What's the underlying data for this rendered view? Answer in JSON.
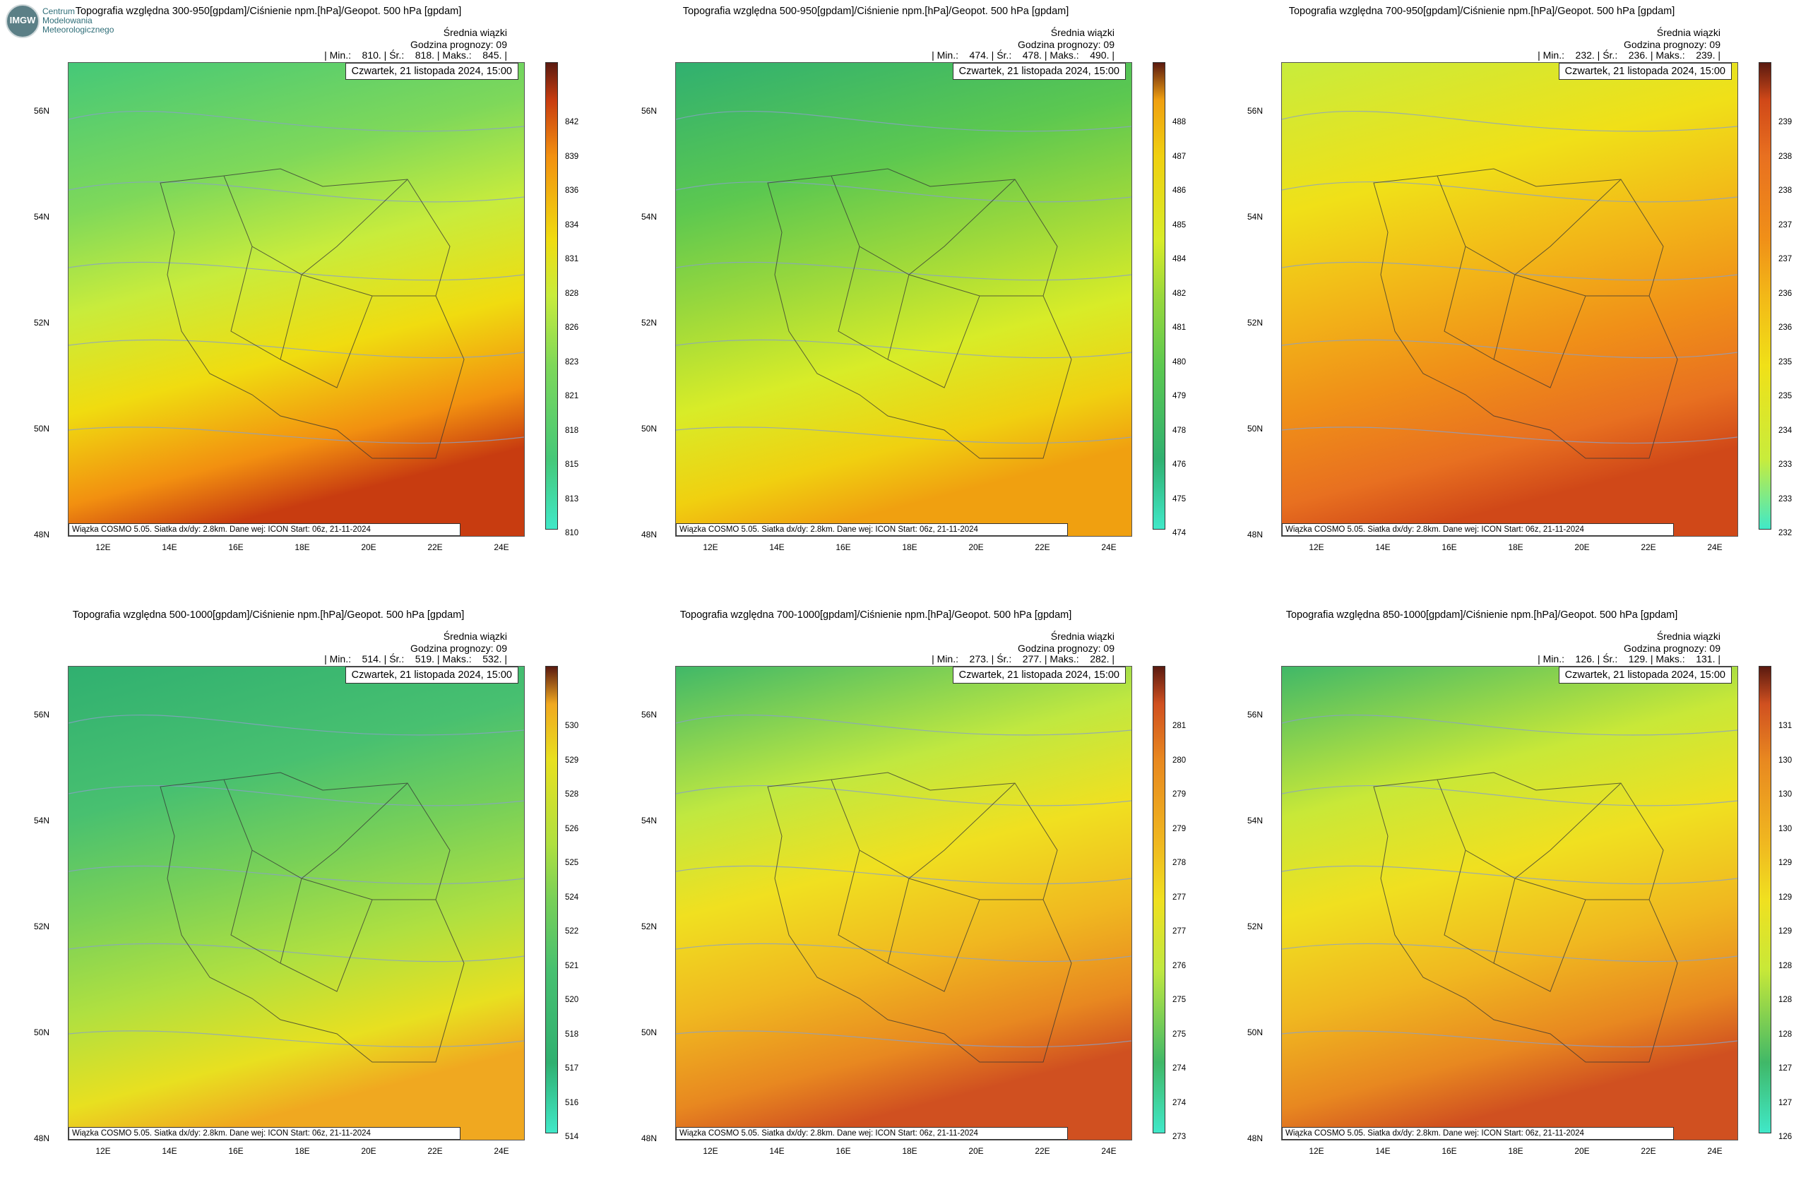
{
  "logo": {
    "badge": "IMGW",
    "line1": "Centrum",
    "line2": "Modelowania",
    "line3": "Meteorologicznego"
  },
  "common": {
    "subtitle_line1": "Średnia wiązki",
    "subtitle_line2": "Godzina prognozy: 09",
    "date": "Czwartek, 21 listopada 2024, 15:00",
    "footer": "Wiązka COSMO 5.05. Siatka dx/dy: 2.8km. Dane wej: ICON Start: 06z, 21-11-2024",
    "lat_labels": [
      "56N",
      "54N",
      "52N",
      "50N",
      "48N"
    ],
    "lon_labels": [
      "12E",
      "14E",
      "16E",
      "18E",
      "20E",
      "22E",
      "24E"
    ]
  },
  "panels": [
    {
      "title": "Topografia względna 300-950[gpdam]/Ciśnienie npm.[hPa]/Geopot. 500 hPa [gpdam]",
      "stats": "| Min.:    810. | Śr.:    818. | Maks.:    845. |",
      "colorbar_ticks": [
        "842",
        "839",
        "836",
        "834",
        "831",
        "828",
        "826",
        "823",
        "821",
        "818",
        "815",
        "813",
        "810"
      ],
      "colors": [
        "#45c878",
        "#7ed85a",
        "#c8ec3c",
        "#f0dc10",
        "#f29010",
        "#c83c10"
      ]
    },
    {
      "title": "Topografia względna 500-950[gpdam]/Ciśnienie npm.[hPa]/Geopot. 500 hPa [gpdam]",
      "stats": "| Min.:    474. | Śr.:    478. | Maks.:    490. |",
      "colorbar_ticks": [
        "488",
        "487",
        "486",
        "485",
        "484",
        "482",
        "481",
        "480",
        "479",
        "478",
        "476",
        "475",
        "474"
      ],
      "colors": [
        "#30b070",
        "#5cc850",
        "#9ad83c",
        "#d8ec28",
        "#f0d010",
        "#f0a010"
      ]
    },
    {
      "title": "Topografia względna 700-950[gpdam]/Ciśnienie npm.[hPa]/Geopot. 500 hPa [gpdam]",
      "stats": "| Min.:    232. | Śr.:    236. | Maks.:    239. |",
      "colorbar_ticks": [
        "239",
        "238",
        "238",
        "237",
        "237",
        "236",
        "236",
        "235",
        "235",
        "234",
        "233",
        "233",
        "232"
      ],
      "colors": [
        "#c8ec3c",
        "#f0e018",
        "#f2b818",
        "#f09018",
        "#e87020",
        "#d04818"
      ]
    },
    {
      "title": "Topografia względna 500-1000[gpdam]/Ciśnienie npm.[hPa]/Geopot. 500 hPa [gpdam]",
      "stats": "| Min.:    514. | Śr.:    519. | Maks.:    532. |",
      "colorbar_ticks": [
        "530",
        "529",
        "528",
        "526",
        "525",
        "524",
        "522",
        "521",
        "520",
        "518",
        "517",
        "516",
        "514"
      ],
      "colors": [
        "#30b070",
        "#48c070",
        "#78d058",
        "#b0e040",
        "#e8e020",
        "#f0a820"
      ]
    },
    {
      "title": "Topografia względna 700-1000[gpdam]/Ciśnienie npm.[hPa]/Geopot. 500 hPa [gpdam]",
      "stats": "| Min.:    273. | Śr.:    277. | Maks.:    282. |",
      "colorbar_ticks": [
        "281",
        "280",
        "279",
        "279",
        "278",
        "277",
        "277",
        "276",
        "275",
        "275",
        "274",
        "274",
        "273"
      ],
      "colors": [
        "#40b868",
        "#c0e840",
        "#f0e020",
        "#f0b820",
        "#e88820",
        "#d05020"
      ]
    },
    {
      "title": "Topografia względna 850-1000[gpdam]/Ciśnienie npm.[hPa]/Geopot. 500 hPa [gpdam]",
      "stats": "| Min.:    126. | Śr.:    129. | Maks.:    131. |",
      "colorbar_ticks": [
        "131",
        "130",
        "130",
        "130",
        "129",
        "129",
        "129",
        "128",
        "128",
        "128",
        "127",
        "127",
        "126"
      ],
      "colors": [
        "#40b868",
        "#c8e838",
        "#f0e020",
        "#f0b820",
        "#e88820",
        "#d05020"
      ]
    }
  ]
}
